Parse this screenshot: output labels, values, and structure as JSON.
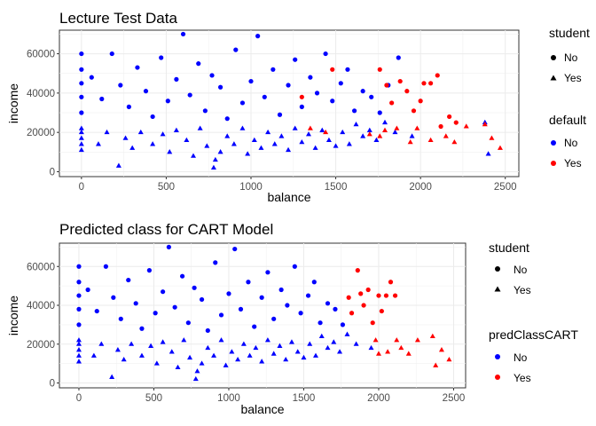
{
  "chart_data": [
    {
      "type": "scatter",
      "title": "Lecture Test Data",
      "xlabel": "balance",
      "ylabel": "income",
      "xlim": [
        -130,
        2580
      ],
      "ylim": [
        -2500,
        72000
      ],
      "xticks": [
        0,
        500,
        1000,
        1500,
        2000,
        2500
      ],
      "xtick_labels": [
        "0",
        "500",
        "1000",
        "1500",
        "2000",
        "2500"
      ],
      "yticks": [
        0,
        20000,
        40000,
        60000
      ],
      "ytick_labels": [
        "0",
        "20000",
        "40000",
        "60000"
      ],
      "grid": true,
      "legend_placement": "right",
      "shape_legend": {
        "title": "student",
        "entries": [
          {
            "label": "No",
            "shape": "circle"
          },
          {
            "label": "Yes",
            "shape": "triangle"
          }
        ]
      },
      "color_legend": {
        "title": "default",
        "entries": [
          {
            "label": "No",
            "color": "#0000ff"
          },
          {
            "label": "Yes",
            "color": "#ff0000"
          }
        ]
      },
      "series": [
        {
          "student": "Yes",
          "color": "No",
          "points": [
            [
              0,
              11000
            ],
            [
              0,
              14000
            ],
            [
              0,
              17000
            ],
            [
              0,
              20000
            ],
            [
              0,
              22000
            ],
            [
              100,
              14000
            ],
            [
              150,
              20000
            ],
            [
              220,
              3000
            ],
            [
              260,
              17000
            ],
            [
              300,
              12000
            ],
            [
              350,
              20000
            ],
            [
              420,
              14000
            ],
            [
              480,
              19000
            ],
            [
              520,
              10000
            ],
            [
              560,
              21000
            ],
            [
              620,
              16000
            ],
            [
              660,
              8000
            ],
            [
              700,
              22000
            ],
            [
              740,
              13000
            ],
            [
              780,
              2000
            ],
            [
              790,
              6000
            ],
            [
              820,
              10000
            ],
            [
              860,
              18000
            ],
            [
              900,
              14000
            ],
            [
              950,
              22000
            ],
            [
              980,
              9000
            ],
            [
              1020,
              16000
            ],
            [
              1060,
              12000
            ],
            [
              1100,
              20000
            ],
            [
              1140,
              14000
            ],
            [
              1180,
              18000
            ],
            [
              1220,
              11000
            ],
            [
              1260,
              22000
            ],
            [
              1300,
              15000
            ],
            [
              1340,
              19000
            ],
            [
              1380,
              12000
            ],
            [
              1420,
              21000
            ],
            [
              1460,
              16000
            ],
            [
              1500,
              13000
            ],
            [
              1540,
              20000
            ],
            [
              1580,
              14000
            ],
            [
              1620,
              24000
            ],
            [
              1660,
              18000
            ],
            [
              1700,
              21000
            ],
            [
              1740,
              16000
            ],
            [
              1790,
              25000
            ],
            [
              1850,
              20000
            ],
            [
              1950,
              18000
            ],
            [
              2380,
              25000
            ],
            [
              2400,
              9000
            ]
          ]
        },
        {
          "student": "No",
          "color": "No",
          "points": [
            [
              0,
              30000
            ],
            [
              0,
              38000
            ],
            [
              0,
              45000
            ],
            [
              0,
              52000
            ],
            [
              0,
              60000
            ],
            [
              60,
              48000
            ],
            [
              120,
              37000
            ],
            [
              180,
              60000
            ],
            [
              230,
              44000
            ],
            [
              280,
              33000
            ],
            [
              330,
              53000
            ],
            [
              380,
              41000
            ],
            [
              420,
              28000
            ],
            [
              470,
              58000
            ],
            [
              510,
              36000
            ],
            [
              560,
              47000
            ],
            [
              600,
              70000
            ],
            [
              640,
              39000
            ],
            [
              690,
              55000
            ],
            [
              730,
              31000
            ],
            [
              770,
              49000
            ],
            [
              820,
              43000
            ],
            [
              860,
              27000
            ],
            [
              910,
              62000
            ],
            [
              950,
              35000
            ],
            [
              1000,
              46000
            ],
            [
              1040,
              69000
            ],
            [
              1080,
              38000
            ],
            [
              1130,
              52000
            ],
            [
              1170,
              29000
            ],
            [
              1220,
              44000
            ],
            [
              1260,
              57000
            ],
            [
              1300,
              33000
            ],
            [
              1350,
              48000
            ],
            [
              1390,
              40000
            ],
            [
              1440,
              60000
            ],
            [
              1480,
              36000
            ],
            [
              1530,
              45000
            ],
            [
              1570,
              52000
            ],
            [
              1610,
              31000
            ],
            [
              1660,
              41000
            ],
            [
              1710,
              38000
            ],
            [
              1760,
              30000
            ],
            [
              1810,
              44000
            ],
            [
              1870,
              58000
            ]
          ]
        },
        {
          "student": "No",
          "color": "Yes",
          "points": [
            [
              1300,
              38000
            ],
            [
              1480,
              52000
            ],
            [
              1760,
              52000
            ],
            [
              1800,
              44000
            ],
            [
              1830,
              35000
            ],
            [
              1880,
              46000
            ],
            [
              1920,
              41000
            ],
            [
              1960,
              31000
            ],
            [
              2000,
              36000
            ],
            [
              2020,
              45000
            ],
            [
              2060,
              45000
            ],
            [
              2100,
              49000
            ],
            [
              2120,
              23000
            ],
            [
              2170,
              28000
            ],
            [
              2210,
              25000
            ]
          ]
        },
        {
          "student": "Yes",
          "color": "Yes",
          "points": [
            [
              1350,
              22000
            ],
            [
              1440,
              20000
            ],
            [
              1700,
              19000
            ],
            [
              1760,
              18000
            ],
            [
              1790,
              21000
            ],
            [
              1860,
              22000
            ],
            [
              1940,
              15000
            ],
            [
              1980,
              22000
            ],
            [
              2060,
              16000
            ],
            [
              2150,
              18000
            ],
            [
              2200,
              15000
            ],
            [
              2270,
              23000
            ],
            [
              2380,
              24000
            ],
            [
              2420,
              17000
            ],
            [
              2470,
              12000
            ]
          ]
        }
      ]
    },
    {
      "type": "scatter",
      "title": "Predicted class for CART Model",
      "xlabel": "balance",
      "ylabel": "income",
      "xlim": [
        -130,
        2580
      ],
      "ylim": [
        -2500,
        72000
      ],
      "xticks": [
        0,
        500,
        1000,
        1500,
        2000,
        2500
      ],
      "xtick_labels": [
        "0",
        "500",
        "1000",
        "1500",
        "2000",
        "2500"
      ],
      "yticks": [
        0,
        20000,
        40000,
        60000
      ],
      "ytick_labels": [
        "0",
        "20000",
        "40000",
        "60000"
      ],
      "grid": true,
      "legend_placement": "right",
      "shape_legend": {
        "title": "student",
        "entries": [
          {
            "label": "No",
            "shape": "circle"
          },
          {
            "label": "Yes",
            "shape": "triangle"
          }
        ]
      },
      "color_legend": {
        "title": "predClassCART",
        "entries": [
          {
            "label": "No",
            "color": "#0000ff"
          },
          {
            "label": "Yes",
            "color": "#ff0000"
          }
        ]
      },
      "series": [
        {
          "student": "Yes",
          "color": "No",
          "points": [
            [
              0,
              11000
            ],
            [
              0,
              14000
            ],
            [
              0,
              17000
            ],
            [
              0,
              20000
            ],
            [
              0,
              22000
            ],
            [
              100,
              14000
            ],
            [
              150,
              20000
            ],
            [
              220,
              3000
            ],
            [
              260,
              17000
            ],
            [
              300,
              12000
            ],
            [
              350,
              20000
            ],
            [
              420,
              14000
            ],
            [
              480,
              19000
            ],
            [
              520,
              10000
            ],
            [
              560,
              21000
            ],
            [
              620,
              16000
            ],
            [
              660,
              8000
            ],
            [
              700,
              22000
            ],
            [
              740,
              13000
            ],
            [
              780,
              2000
            ],
            [
              790,
              6000
            ],
            [
              820,
              10000
            ],
            [
              860,
              18000
            ],
            [
              900,
              14000
            ],
            [
              950,
              22000
            ],
            [
              980,
              9000
            ],
            [
              1020,
              16000
            ],
            [
              1060,
              12000
            ],
            [
              1100,
              20000
            ],
            [
              1140,
              14000
            ],
            [
              1180,
              18000
            ],
            [
              1220,
              11000
            ],
            [
              1260,
              22000
            ],
            [
              1300,
              15000
            ],
            [
              1340,
              19000
            ],
            [
              1380,
              12000
            ],
            [
              1420,
              21000
            ],
            [
              1460,
              16000
            ],
            [
              1500,
              13000
            ],
            [
              1540,
              20000
            ],
            [
              1580,
              14000
            ],
            [
              1620,
              24000
            ],
            [
              1660,
              18000
            ],
            [
              1700,
              21000
            ],
            [
              1740,
              16000
            ],
            [
              1790,
              25000
            ],
            [
              1850,
              20000
            ],
            [
              1950,
              18000
            ]
          ]
        },
        {
          "student": "No",
          "color": "No",
          "points": [
            [
              0,
              30000
            ],
            [
              0,
              38000
            ],
            [
              0,
              45000
            ],
            [
              0,
              52000
            ],
            [
              0,
              60000
            ],
            [
              60,
              48000
            ],
            [
              120,
              37000
            ],
            [
              180,
              60000
            ],
            [
              230,
              44000
            ],
            [
              280,
              33000
            ],
            [
              330,
              53000
            ],
            [
              380,
              41000
            ],
            [
              420,
              28000
            ],
            [
              470,
              58000
            ],
            [
              510,
              36000
            ],
            [
              560,
              47000
            ],
            [
              600,
              70000
            ],
            [
              640,
              39000
            ],
            [
              690,
              55000
            ],
            [
              730,
              31000
            ],
            [
              770,
              49000
            ],
            [
              820,
              43000
            ],
            [
              860,
              27000
            ],
            [
              910,
              62000
            ],
            [
              950,
              35000
            ],
            [
              1000,
              46000
            ],
            [
              1040,
              69000
            ],
            [
              1080,
              38000
            ],
            [
              1130,
              52000
            ],
            [
              1170,
              29000
            ],
            [
              1220,
              44000
            ],
            [
              1260,
              57000
            ],
            [
              1300,
              33000
            ],
            [
              1350,
              48000
            ],
            [
              1390,
              40000
            ],
            [
              1440,
              60000
            ],
            [
              1480,
              36000
            ],
            [
              1530,
              45000
            ],
            [
              1570,
              52000
            ],
            [
              1610,
              31000
            ],
            [
              1660,
              41000
            ],
            [
              1710,
              38000
            ],
            [
              1760,
              30000
            ]
          ]
        },
        {
          "student": "No",
          "color": "Yes",
          "points": [
            [
              1800,
              44000
            ],
            [
              1820,
              36000
            ],
            [
              1860,
              58000
            ],
            [
              1880,
              46000
            ],
            [
              1900,
              40000
            ],
            [
              1930,
              48000
            ],
            [
              1960,
              31000
            ],
            [
              2000,
              45000
            ],
            [
              2020,
              37000
            ],
            [
              2050,
              45000
            ],
            [
              2080,
              52000
            ],
            [
              2110,
              45000
            ]
          ]
        },
        {
          "student": "Yes",
          "color": "Yes",
          "points": [
            [
              1980,
              22000
            ],
            [
              2000,
              15000
            ],
            [
              2060,
              16000
            ],
            [
              2120,
              22000
            ],
            [
              2150,
              18000
            ],
            [
              2200,
              15000
            ],
            [
              2260,
              22000
            ],
            [
              2360,
              24000
            ],
            [
              2380,
              9000
            ],
            [
              2420,
              17000
            ],
            [
              2470,
              12000
            ]
          ]
        }
      ]
    }
  ]
}
